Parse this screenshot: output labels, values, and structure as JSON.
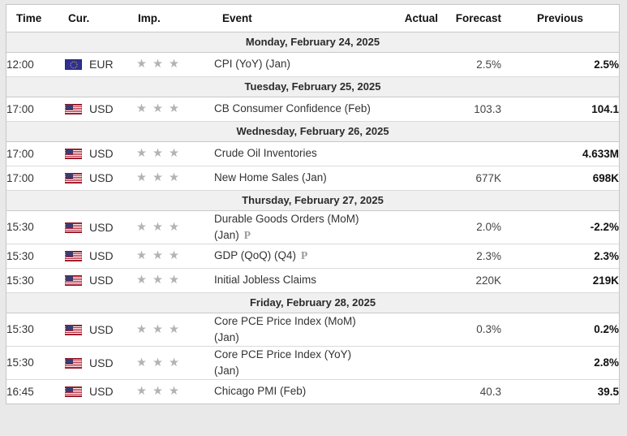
{
  "table": {
    "columns": [
      "Time",
      "Cur.",
      "Imp.",
      "Event",
      "Actual",
      "Forecast",
      "Previous"
    ],
    "groups": [
      {
        "date": "Monday, February 24, 2025",
        "rows": [
          {
            "time": "12:00",
            "currency": "EUR",
            "flag": "eu",
            "importance": 3,
            "event_lines": [
              "CPI (YoY) (Jan)"
            ],
            "preliminary": false,
            "actual": "",
            "forecast": "2.5%",
            "previous": "2.5%"
          }
        ]
      },
      {
        "date": "Tuesday, February 25, 2025",
        "rows": [
          {
            "time": "17:00",
            "currency": "USD",
            "flag": "us",
            "importance": 3,
            "event_lines": [
              "CB Consumer Confidence (Feb)"
            ],
            "preliminary": false,
            "actual": "",
            "forecast": "103.3",
            "previous": "104.1"
          }
        ]
      },
      {
        "date": "Wednesday, February 26, 2025",
        "rows": [
          {
            "time": "17:00",
            "currency": "USD",
            "flag": "us",
            "importance": 3,
            "event_lines": [
              "Crude Oil Inventories"
            ],
            "preliminary": false,
            "actual": "",
            "forecast": "",
            "previous": "4.633M"
          },
          {
            "time": "17:00",
            "currency": "USD",
            "flag": "us",
            "importance": 3,
            "event_lines": [
              "New Home Sales (Jan)"
            ],
            "preliminary": false,
            "actual": "",
            "forecast": "677K",
            "previous": "698K"
          }
        ]
      },
      {
        "date": "Thursday, February 27, 2025",
        "rows": [
          {
            "time": "15:30",
            "currency": "USD",
            "flag": "us",
            "importance": 3,
            "event_lines": [
              "Durable Goods Orders (MoM)",
              "(Jan)"
            ],
            "preliminary": true,
            "actual": "",
            "forecast": "2.0%",
            "previous": "-2.2%"
          },
          {
            "time": "15:30",
            "currency": "USD",
            "flag": "us",
            "importance": 3,
            "event_lines": [
              "GDP (QoQ) (Q4)"
            ],
            "preliminary": true,
            "actual": "",
            "forecast": "2.3%",
            "previous": "2.3%"
          },
          {
            "time": "15:30",
            "currency": "USD",
            "flag": "us",
            "importance": 3,
            "event_lines": [
              "Initial Jobless Claims"
            ],
            "preliminary": false,
            "actual": "",
            "forecast": "220K",
            "previous": "219K"
          }
        ]
      },
      {
        "date": "Friday, February 28, 2025",
        "rows": [
          {
            "time": "15:30",
            "currency": "USD",
            "flag": "us",
            "importance": 3,
            "event_lines": [
              "Core PCE Price Index (MoM)",
              "(Jan)"
            ],
            "preliminary": false,
            "actual": "",
            "forecast": "0.3%",
            "previous": "0.2%"
          },
          {
            "time": "15:30",
            "currency": "USD",
            "flag": "us",
            "importance": 3,
            "event_lines": [
              "Core PCE Price Index (YoY)",
              "(Jan)"
            ],
            "preliminary": false,
            "actual": "",
            "forecast": "",
            "previous": "2.8%"
          },
          {
            "time": "16:45",
            "currency": "USD",
            "flag": "us",
            "importance": 3,
            "event_lines": [
              "Chicago PMI (Feb)"
            ],
            "preliminary": false,
            "actual": "",
            "forecast": "40.3",
            "previous": "39.5"
          }
        ]
      }
    ]
  },
  "icons": {
    "importance_star": "★",
    "preliminary_mark": "P"
  },
  "colors": {
    "page_background": "#e9e9e9",
    "table_background": "#ffffff",
    "day_row_background": "#f0f0f0",
    "border": "#c9c9c9",
    "star_gray": "#b3b3b3",
    "previous_text": "#111111",
    "forecast_text": "#444444",
    "eu_flag_blue": "#2e3192",
    "us_flag_red": "#b22234",
    "us_flag_blue": "#3c3b6e"
  }
}
